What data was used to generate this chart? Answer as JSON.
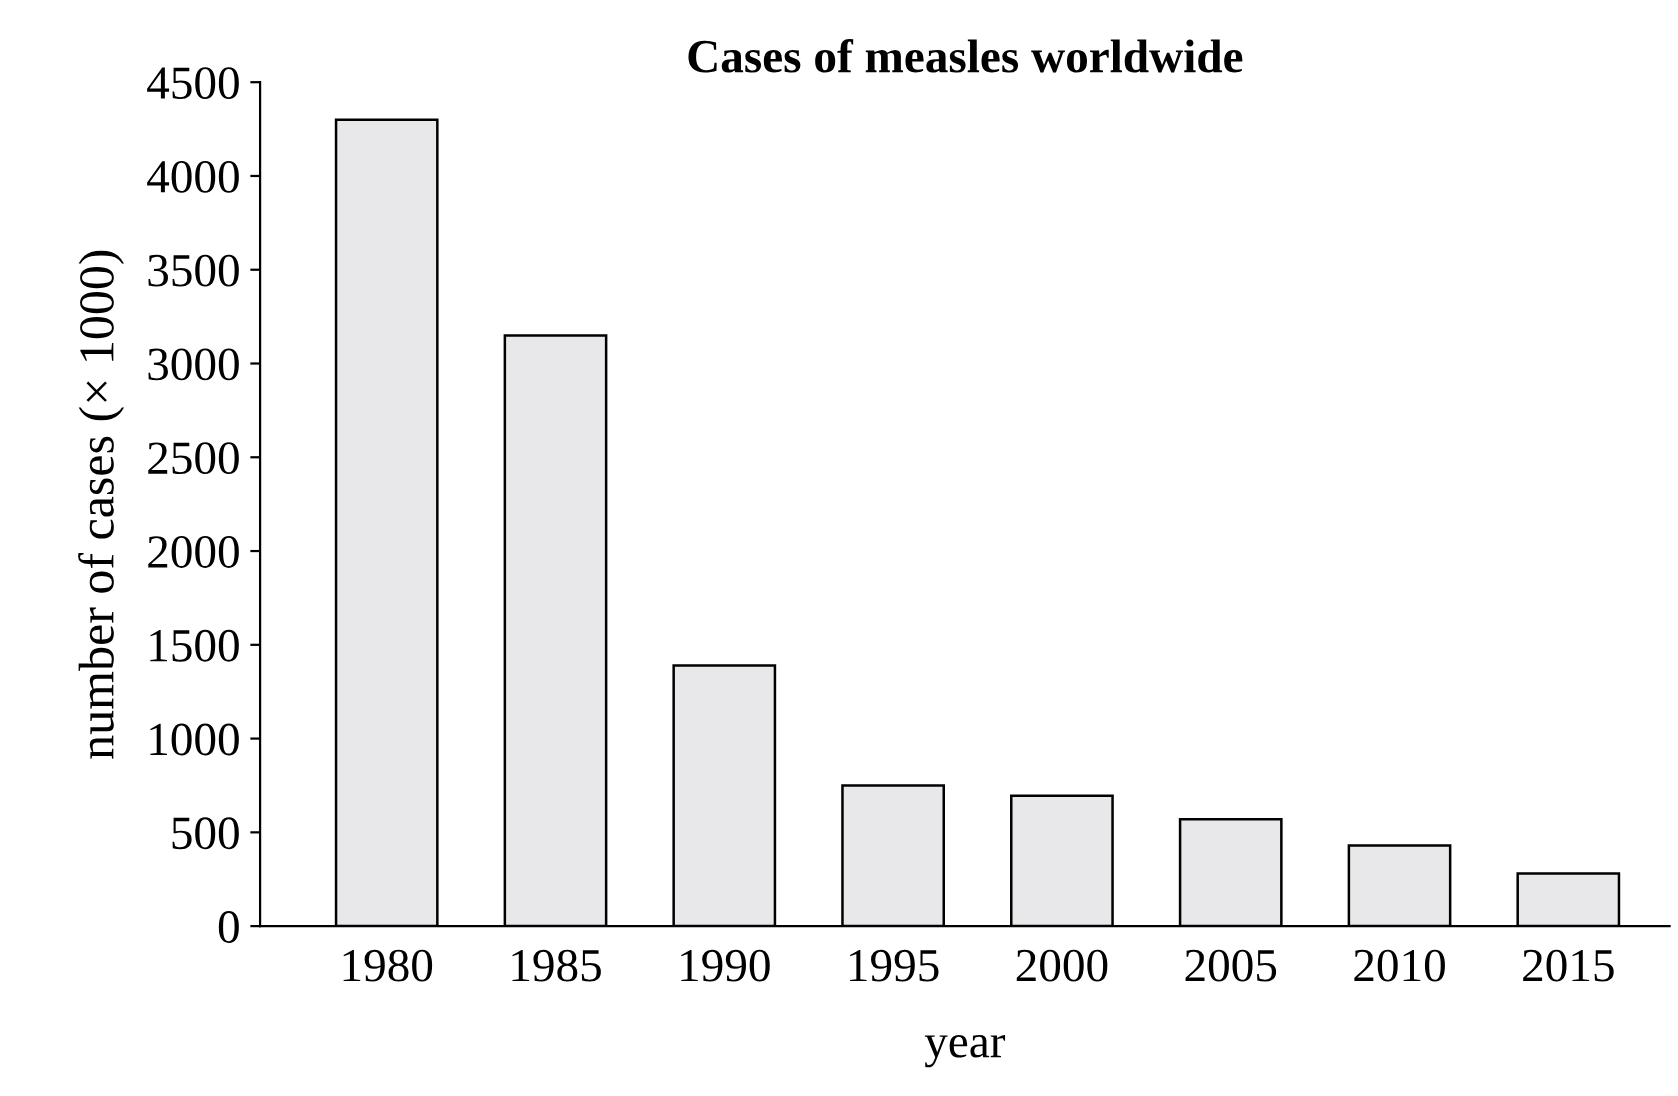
{
  "chart_data": {
    "type": "bar",
    "title": "Cases of measles worldwide",
    "xlabel": "year",
    "ylabel": "number of cases (× 1000)",
    "categories": [
      "1980",
      "1985",
      "1990",
      "1995",
      "2000",
      "2005",
      "2010",
      "2015"
    ],
    "values": [
      4300,
      3150,
      1390,
      750,
      695,
      570,
      430,
      280
    ],
    "color": "#e8e8ea",
    "ylim": [
      0,
      4500
    ],
    "yticks": [
      0,
      500,
      1000,
      1500,
      2000,
      2500,
      3000,
      3500,
      4000,
      4500
    ],
    "grid": false,
    "legend": false
  }
}
